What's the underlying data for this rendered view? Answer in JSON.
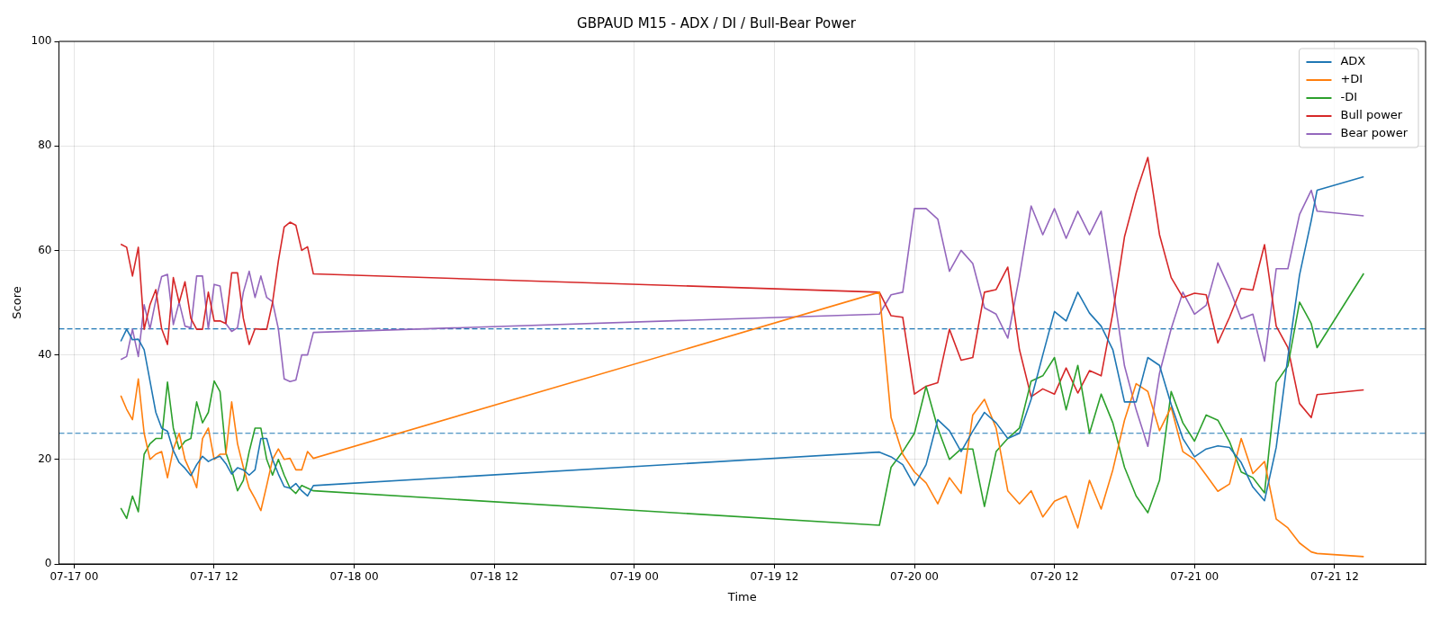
{
  "chart_data": {
    "type": "line",
    "title": "GBPAUD M15 - ADX / DI / Bull-Bear Power",
    "xlabel": "Time",
    "ylabel": "Score",
    "x": [
      "--07-17T04:00",
      "--07-17T04:30",
      "--07-17T05:00",
      "--07-17T05:30",
      "--07-17T06:00",
      "--07-17T06:30",
      "--07-17T07:00",
      "--07-17T07:30",
      "--07-17T08:00",
      "--07-17T08:30",
      "--07-17T09:00",
      "--07-17T09:30",
      "--07-17T10:00",
      "--07-17T10:30",
      "--07-17T11:00",
      "--07-17T11:30",
      "--07-17T12:00",
      "--07-17T12:30",
      "--07-17T13:00",
      "--07-17T13:30",
      "--07-17T14:00",
      "--07-17T14:30",
      "--07-17T15:00",
      "--07-17T15:30",
      "--07-17T16:00",
      "--07-17T16:30",
      "--07-17T17:00",
      "--07-17T17:30",
      "--07-17T18:00",
      "--07-17T18:30",
      "--07-17T19:00",
      "--07-17T19:30",
      "--07-17T20:00",
      "--07-17T20:30",
      "--07-19T21:00",
      "--07-19T22:00",
      "--07-19T23:00",
      "--07-20T00:00",
      "--07-20T01:00",
      "--07-20T02:00",
      "--07-20T03:00",
      "--07-20T04:00",
      "--07-20T05:00",
      "--07-20T06:00",
      "--07-20T07:00",
      "--07-20T08:00",
      "--07-20T09:00",
      "--07-20T10:00",
      "--07-20T11:00",
      "--07-20T12:00",
      "--07-20T13:00",
      "--07-20T14:00",
      "--07-20T15:00",
      "--07-20T16:00",
      "--07-20T17:00",
      "--07-20T18:00",
      "--07-20T19:00",
      "--07-20T20:00",
      "--07-20T21:00",
      "--07-20T22:00",
      "--07-20T23:00",
      "--07-21T00:00",
      "--07-21T01:00",
      "--07-21T02:00",
      "--07-21T03:00",
      "--07-21T04:00",
      "--07-21T05:00",
      "--07-21T06:00",
      "--07-21T07:00",
      "--07-21T08:00",
      "--07-21T09:00",
      "--07-21T10:00",
      "--07-21T10:30",
      "--07-21T14:30"
    ],
    "series": [
      {
        "name": "ADX",
        "color": "#1f77b4",
        "values": [
          42.6,
          44.9,
          42.9,
          43.0,
          41.0,
          35.0,
          29.0,
          26.0,
          25.4,
          21.7,
          19.4,
          18.3,
          16.9,
          19.0,
          20.6,
          19.6,
          20.2,
          20.6,
          19.2,
          17.2,
          18.4,
          18.0,
          17.0,
          18.0,
          24.0,
          24.0,
          20.0,
          17.2,
          14.8,
          14.5,
          15.4,
          14.0,
          13.0,
          15.0,
          21.4,
          20.5,
          19.0,
          15.0,
          19.0,
          27.6,
          25.5,
          21.5,
          25.4,
          29.0,
          27.0,
          24.0,
          25.0,
          31.5,
          40.0,
          48.3,
          46.5,
          52.0,
          48.0,
          45.5,
          41.0,
          31.0,
          31.0,
          39.5,
          38.0,
          30.5,
          24.0,
          20.5,
          22.0,
          22.6,
          22.3,
          19.4,
          14.7,
          12.1,
          22.3,
          39.6,
          55.3,
          65.7,
          71.5,
          74.1
        ]
      },
      {
        "name": "+DI",
        "color": "#ff7f0e",
        "values": [
          32.2,
          29.6,
          27.6,
          35.4,
          25.0,
          20.0,
          21.0,
          21.5,
          16.5,
          22.0,
          25.0,
          20.0,
          17.5,
          14.6,
          24.0,
          26.0,
          20.0,
          21.0,
          21.0,
          31.0,
          23.0,
          18.5,
          14.5,
          12.5,
          10.2,
          15.0,
          20.0,
          22.0,
          20.0,
          20.2,
          18.0,
          18.0,
          21.5,
          20.2,
          52.0,
          28.0,
          21.0,
          17.6,
          15.5,
          11.5,
          16.5,
          13.5,
          28.5,
          31.5,
          26.0,
          14.0,
          11.5,
          14.0,
          9.0,
          12.0,
          13.0,
          6.9,
          16.0,
          10.5,
          18.0,
          27.5,
          34.5,
          33.0,
          25.5,
          30.0,
          21.5,
          20.0,
          17.0,
          13.9,
          15.3,
          24.0,
          17.3,
          19.6,
          8.6,
          6.9,
          4.0,
          2.3,
          2.0,
          1.4
        ]
      },
      {
        "name": "-DI",
        "color": "#2ca02c",
        "values": [
          10.7,
          8.7,
          13.0,
          10.0,
          21.0,
          23.0,
          24.0,
          24.0,
          34.8,
          26.0,
          22.0,
          23.5,
          24.0,
          31.0,
          27.0,
          29.0,
          35.0,
          33.0,
          21.3,
          18.0,
          14.0,
          16.0,
          21.5,
          26.0,
          26.0,
          20.0,
          17.0,
          20.0,
          17.0,
          14.5,
          13.5,
          15.0,
          14.5,
          14.0,
          7.4,
          18.5,
          21.5,
          25.0,
          34.0,
          26.0,
          20.0,
          22.0,
          22.0,
          11.0,
          21.5,
          24.0,
          26.0,
          35.0,
          36.0,
          39.5,
          29.5,
          38.0,
          25.0,
          32.5,
          27.0,
          18.5,
          13.0,
          9.8,
          16.0,
          33.0,
          27.0,
          23.5,
          28.5,
          27.5,
          23.4,
          17.6,
          16.5,
          13.6,
          34.7,
          37.9,
          50.1,
          46.0,
          41.4,
          55.6
        ]
      },
      {
        "name": "Bull power",
        "color": "#d62728",
        "values": [
          61.2,
          60.6,
          55.1,
          60.6,
          44.9,
          49.6,
          52.5,
          45.0,
          42.0,
          54.8,
          50.0,
          54.0,
          47.0,
          44.9,
          44.9,
          52.0,
          46.5,
          46.5,
          46.0,
          55.7,
          55.7,
          47.0,
          42.0,
          45.0,
          44.9,
          44.9,
          50.0,
          58.0,
          64.5,
          65.4,
          64.8,
          60.0,
          60.7,
          55.5,
          52.0,
          47.5,
          47.2,
          32.5,
          34.0,
          34.7,
          44.9,
          39.0,
          39.5,
          52.0,
          52.5,
          56.8,
          41.0,
          32.0,
          33.5,
          32.5,
          37.5,
          32.7,
          37.0,
          36.0,
          48.0,
          62.6,
          71.0,
          77.8,
          63.0,
          54.8,
          51.0,
          51.8,
          51.5,
          42.3,
          47.2,
          52.7,
          52.4,
          61.1,
          45.5,
          41.4,
          30.7,
          28.0,
          32.4,
          33.3
        ]
      },
      {
        "name": "Bear power",
        "color": "#9467bd",
        "values": [
          39.1,
          39.7,
          44.9,
          39.7,
          49.6,
          45.0,
          50.5,
          55.0,
          55.4,
          45.8,
          50.1,
          45.5,
          45.2,
          55.1,
          55.1,
          45.0,
          53.5,
          53.2,
          46.0,
          44.5,
          45.2,
          52.0,
          56.0,
          51.0,
          55.1,
          51.0,
          50.2,
          45.0,
          35.4,
          34.9,
          35.2,
          40.0,
          40.0,
          44.3,
          47.8,
          51.5,
          52.0,
          68.0,
          68.0,
          66.0,
          56.0,
          60.0,
          57.5,
          49.0,
          47.8,
          43.2,
          55.0,
          68.5,
          63.0,
          68.0,
          62.3,
          67.5,
          63.0,
          67.5,
          53.0,
          37.9,
          29.5,
          22.5,
          36.5,
          45.0,
          52.0,
          47.8,
          49.5,
          57.6,
          52.7,
          46.9,
          47.8,
          38.8,
          56.5,
          56.5,
          66.9,
          71.5,
          67.5,
          66.6
        ]
      }
    ],
    "xlim": [
      "--07-16T22:42",
      "--07-21T19:48"
    ],
    "xticks": [
      {
        "value": "--07-17T00:00",
        "label": "07-17 00"
      },
      {
        "value": "--07-17T12:00",
        "label": "07-17 12"
      },
      {
        "value": "--07-18T00:00",
        "label": "07-18 00"
      },
      {
        "value": "--07-18T12:00",
        "label": "07-18 12"
      },
      {
        "value": "--07-19T00:00",
        "label": "07-19 00"
      },
      {
        "value": "--07-19T12:00",
        "label": "07-19 12"
      },
      {
        "value": "--07-20T00:00",
        "label": "07-20 00"
      },
      {
        "value": "--07-20T12:00",
        "label": "07-20 12"
      },
      {
        "value": "--07-21T00:00",
        "label": "07-21 00"
      },
      {
        "value": "--07-21T12:00",
        "label": "07-21 12"
      }
    ],
    "ylim": [
      0,
      100
    ],
    "yticks": [
      0,
      20,
      40,
      60,
      80,
      100
    ],
    "ref_lines": [
      {
        "axis": "y",
        "value": 45,
        "color": "#1f77b4",
        "line_style": "dashed"
      },
      {
        "axis": "y",
        "value": 25,
        "color": "#1f77b4",
        "line_style": "dashed"
      }
    ],
    "grid": true,
    "legend": "top right",
    "marker": "none",
    "line_style": "solid"
  }
}
